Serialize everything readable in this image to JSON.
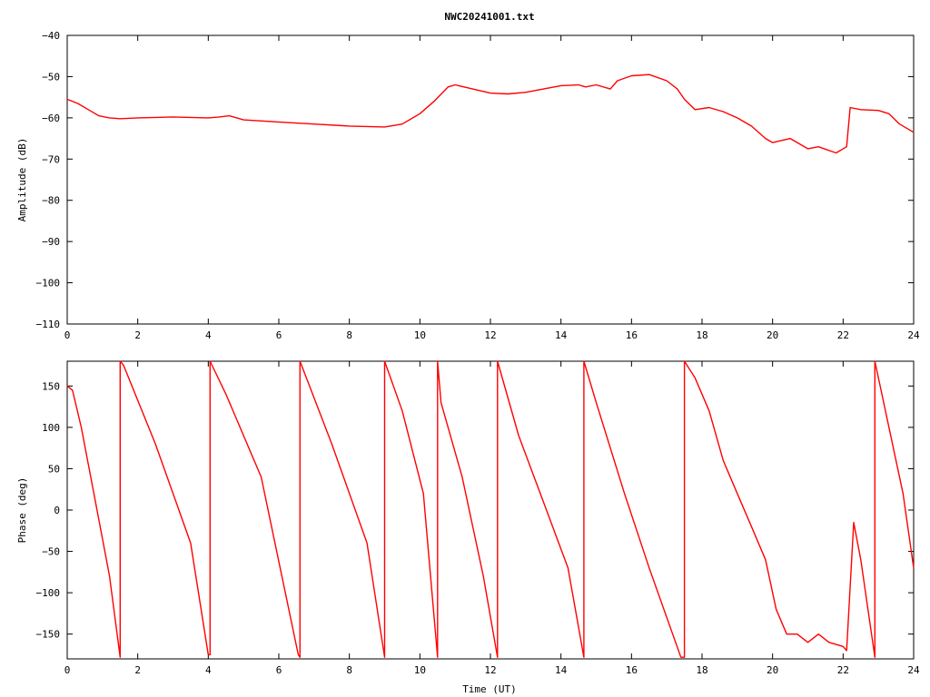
{
  "chart_data": [
    {
      "type": "line",
      "title": "NWC20241001.txt",
      "xlabel": "",
      "ylabel": "Amplitude (dB)",
      "xlim": [
        0,
        24
      ],
      "ylim": [
        -110,
        -40
      ],
      "x_ticks": [
        "0",
        "2",
        "4",
        "6",
        "8",
        "10",
        "12",
        "14",
        "16",
        "18",
        "20",
        "22",
        "24"
      ],
      "y_ticks": [
        "-40",
        "-50",
        "-60",
        "-70",
        "-80",
        "-90",
        "-100",
        "-110"
      ],
      "series": [
        {
          "color": "#ff0000",
          "x": [
            0,
            0.3,
            0.6,
            0.9,
            1.2,
            1.5,
            2,
            3,
            4,
            4.3,
            4.6,
            5,
            6,
            7,
            8,
            9,
            9.5,
            10,
            10.4,
            10.8,
            11,
            11.5,
            12,
            12.5,
            13,
            13.5,
            14,
            14.5,
            14.7,
            15,
            15.4,
            15.6,
            16,
            16.5,
            17,
            17.3,
            17.5,
            17.8,
            18.2,
            18.6,
            19,
            19.4,
            19.8,
            20,
            20.5,
            21,
            21.3,
            21.8,
            22.1,
            22.2,
            22.5,
            23,
            23.3,
            23.6,
            24
          ],
          "y": [
            -55.5,
            -56.5,
            -58,
            -59.5,
            -60,
            -60.2,
            -60,
            -59.8,
            -60,
            -59.8,
            -59.5,
            -60.5,
            -61,
            -61.5,
            -62,
            -62.2,
            -61.5,
            -59,
            -56,
            -52.5,
            -52,
            -53,
            -54,
            -54.2,
            -53.8,
            -53,
            -52.2,
            -52,
            -52.5,
            -52,
            -53,
            -51,
            -49.8,
            -49.5,
            -51,
            -53,
            -55.5,
            -58,
            -57.5,
            -58.5,
            -60,
            -62,
            -65,
            -66,
            -65,
            -67.5,
            -67,
            -68.5,
            -67,
            -57.5,
            -58,
            -58.2,
            -59,
            -61.5,
            -63.5
          ]
        }
      ]
    },
    {
      "type": "line",
      "title": "",
      "xlabel": "Time (UT)",
      "ylabel": "Phase (deg)",
      "xlim": [
        0,
        24
      ],
      "ylim": [
        -180,
        180
      ],
      "x_ticks": [
        "0",
        "2",
        "4",
        "6",
        "8",
        "10",
        "12",
        "14",
        "16",
        "18",
        "20",
        "22",
        "24"
      ],
      "y_ticks": [
        "150",
        "100",
        "50",
        "0",
        "-50",
        "-100",
        "-150"
      ],
      "series": [
        {
          "color": "#ff0000",
          "x": [
            0,
            0.15,
            0.4,
            0.8,
            1.2,
            1.5,
            1.5,
            1.6,
            2.5,
            3.5,
            4.0,
            4.05,
            4.05,
            4.5,
            5.5,
            6.55,
            6.6,
            6.6,
            7.5,
            8.5,
            9.0,
            9.0,
            9.5,
            10.1,
            10.5,
            10.5,
            10.6,
            11.2,
            11.8,
            12.2,
            12.2,
            12.8,
            13.5,
            14.2,
            14.65,
            14.65,
            15,
            15.8,
            16.5,
            17.4,
            17.5,
            17.5,
            17.8,
            18.2,
            18.6,
            19,
            19.4,
            19.8,
            20.1,
            20.4,
            20.7,
            21,
            21.3,
            21.6,
            22.0,
            22.1,
            22.1,
            22.3,
            22.5,
            22.9,
            22.9,
            23.3,
            23.7,
            24
          ],
          "y": [
            150,
            145,
            100,
            10,
            -80,
            -178,
            180,
            175,
            80,
            -40,
            -175,
            -175,
            180,
            140,
            40,
            -175,
            -178,
            180,
            80,
            -40,
            -178,
            180,
            120,
            20,
            -178,
            180,
            130,
            40,
            -80,
            -178,
            180,
            90,
            10,
            -70,
            -178,
            180,
            130,
            20,
            -70,
            -178,
            -178,
            180,
            160,
            120,
            60,
            20,
            -20,
            -60,
            -120,
            -150,
            -150,
            -160,
            -150,
            -160,
            -165,
            -170,
            -170,
            -15,
            -60,
            -178,
            180,
            100,
            20,
            -70
          ]
        }
      ]
    }
  ]
}
